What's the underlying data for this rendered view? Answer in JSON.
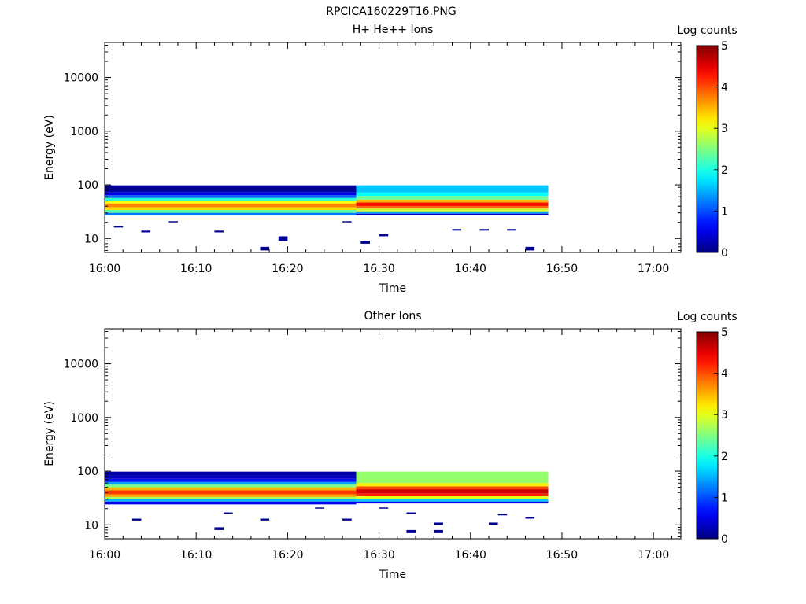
{
  "figure": {
    "title": "RPCICA160229T16.PNG"
  },
  "colorbar_ticks": [
    "0",
    "1",
    "2",
    "3",
    "4",
    "5"
  ],
  "chart_data": [
    {
      "type": "heatmap",
      "title": "H+ He++ Ions",
      "xlabel": "Time",
      "ylabel": "Energy (eV)",
      "colorbar_label": "Log counts",
      "x_ticks": [
        "16:00",
        "16:10",
        "16:20",
        "16:30",
        "16:40",
        "16:50",
        "17:00"
      ],
      "xlim": [
        "16:00",
        "17:03"
      ],
      "y_scale": "log",
      "y_ticks": [
        "10",
        "100",
        "1000",
        "10000"
      ],
      "ylim": [
        5.5,
        45000
      ],
      "colorbar_range": [
        0,
        5
      ],
      "data_end_time": "16:48.5",
      "bins": [
        {
          "t0": "16:00",
          "t1": "16:27.5",
          "e0": 38,
          "e1": 45,
          "log_counts": 3.7
        },
        {
          "t0": "16:00",
          "t1": "16:27.5",
          "e0": 34,
          "e1": 38,
          "log_counts": 3.3
        },
        {
          "t0": "16:00",
          "t1": "16:27.5",
          "e0": 45,
          "e1": 51,
          "log_counts": 3.1
        },
        {
          "t0": "16:00",
          "t1": "16:27.5",
          "e0": 30,
          "e1": 34,
          "log_counts": 2.3
        },
        {
          "t0": "16:00",
          "t1": "16:27.5",
          "e0": 51,
          "e1": 57,
          "log_counts": 2.1
        },
        {
          "t0": "16:00",
          "t1": "16:27.5",
          "e0": 27,
          "e1": 30,
          "log_counts": 1.2
        },
        {
          "t0": "16:00",
          "t1": "16:27.5",
          "e0": 57,
          "e1": 64,
          "log_counts": 1.1
        },
        {
          "t0": "16:00",
          "t1": "16:27.5",
          "e0": 64,
          "e1": 72,
          "log_counts": 0.5
        },
        {
          "t0": "16:00",
          "t1": "16:27.5",
          "e0": 72,
          "e1": 80,
          "log_counts": 0.2
        },
        {
          "t0": "16:00",
          "t1": "16:27.5",
          "e0": 80,
          "e1": 98,
          "log_counts": 0.1
        },
        {
          "t0": "16:27.5",
          "t1": "16:48.5",
          "e0": 40,
          "e1": 47,
          "log_counts": 4.3
        },
        {
          "t0": "16:27.5",
          "t1": "16:48.5",
          "e0": 36,
          "e1": 40,
          "log_counts": 3.9
        },
        {
          "t0": "16:27.5",
          "t1": "16:48.5",
          "e0": 47,
          "e1": 53,
          "log_counts": 3.5
        },
        {
          "t0": "16:27.5",
          "t1": "16:48.5",
          "e0": 32,
          "e1": 36,
          "log_counts": 2.9
        },
        {
          "t0": "16:27.5",
          "t1": "16:48.5",
          "e0": 53,
          "e1": 62,
          "log_counts": 2.4
        },
        {
          "t0": "16:27.5",
          "t1": "16:48.5",
          "e0": 29,
          "e1": 32,
          "log_counts": 1.4
        },
        {
          "t0": "16:27.5",
          "t1": "16:48.5",
          "e0": 62,
          "e1": 72,
          "log_counts": 1.9
        },
        {
          "t0": "16:27.5",
          "t1": "16:48.5",
          "e0": 72,
          "e1": 98,
          "log_counts": 1.6
        },
        {
          "t0": "16:27.5",
          "t1": "16:48.5",
          "e0": 27,
          "e1": 29,
          "log_counts": 0.3
        },
        {
          "t0": "16:01",
          "t1": "16:02",
          "e0": 16,
          "e1": 17,
          "log_counts": 0.1
        },
        {
          "t0": "16:04",
          "t1": "16:05",
          "e0": 13,
          "e1": 14,
          "log_counts": 0.1
        },
        {
          "t0": "16:07",
          "t1": "16:08",
          "e0": 20,
          "e1": 21,
          "log_counts": 0.1
        },
        {
          "t0": "16:12",
          "t1": "16:13",
          "e0": 13,
          "e1": 14,
          "log_counts": 0.1
        },
        {
          "t0": "16:17",
          "t1": "16:18",
          "e0": 6,
          "e1": 7,
          "log_counts": 0.1
        },
        {
          "t0": "16:19",
          "t1": "16:20",
          "e0": 9,
          "e1": 11,
          "log_counts": 0.1
        },
        {
          "t0": "16:26",
          "t1": "16:27",
          "e0": 20,
          "e1": 21,
          "log_counts": 0.1
        },
        {
          "t0": "16:28",
          "t1": "16:29",
          "e0": 8,
          "e1": 9,
          "log_counts": 0.1
        },
        {
          "t0": "16:30",
          "t1": "16:31",
          "e0": 11,
          "e1": 12,
          "log_counts": 0.1
        },
        {
          "t0": "16:38",
          "t1": "16:39",
          "e0": 14,
          "e1": 15,
          "log_counts": 0.1
        },
        {
          "t0": "16:41",
          "t1": "16:42",
          "e0": 14,
          "e1": 15,
          "log_counts": 0.1
        },
        {
          "t0": "16:44",
          "t1": "16:45",
          "e0": 14,
          "e1": 15,
          "log_counts": 0.1
        },
        {
          "t0": "16:46",
          "t1": "16:47",
          "e0": 6,
          "e1": 7,
          "log_counts": 0.1
        }
      ]
    },
    {
      "type": "heatmap",
      "title": "Other Ions",
      "xlabel": "Time",
      "ylabel": "Energy (eV)",
      "colorbar_label": "Log counts",
      "x_ticks": [
        "16:00",
        "16:10",
        "16:20",
        "16:30",
        "16:40",
        "16:50",
        "17:00"
      ],
      "xlim": [
        "16:00",
        "17:03"
      ],
      "y_scale": "log",
      "y_ticks": [
        "10",
        "100",
        "1000",
        "10000"
      ],
      "ylim": [
        5.5,
        45000
      ],
      "colorbar_range": [
        0,
        5
      ],
      "data_end_time": "16:48.5",
      "bins": [
        {
          "t0": "16:00",
          "t1": "16:27.5",
          "e0": 37,
          "e1": 44,
          "log_counts": 4.1
        },
        {
          "t0": "16:00",
          "t1": "16:27.5",
          "e0": 33,
          "e1": 37,
          "log_counts": 3.6
        },
        {
          "t0": "16:00",
          "t1": "16:27.5",
          "e0": 44,
          "e1": 50,
          "log_counts": 3.5
        },
        {
          "t0": "16:00",
          "t1": "16:27.5",
          "e0": 30,
          "e1": 33,
          "log_counts": 2.7
        },
        {
          "t0": "16:00",
          "t1": "16:27.5",
          "e0": 50,
          "e1": 56,
          "log_counts": 2.5
        },
        {
          "t0": "16:00",
          "t1": "16:27.5",
          "e0": 27,
          "e1": 30,
          "log_counts": 1.5
        },
        {
          "t0": "16:00",
          "t1": "16:27.5",
          "e0": 56,
          "e1": 63,
          "log_counts": 1.4
        },
        {
          "t0": "16:00",
          "t1": "16:27.5",
          "e0": 24,
          "e1": 27,
          "log_counts": 0.5
        },
        {
          "t0": "16:00",
          "t1": "16:27.5",
          "e0": 63,
          "e1": 72,
          "log_counts": 0.7
        },
        {
          "t0": "16:00",
          "t1": "16:27.5",
          "e0": 72,
          "e1": 82,
          "log_counts": 0.3
        },
        {
          "t0": "16:00",
          "t1": "16:27.5",
          "e0": 82,
          "e1": 98,
          "log_counts": 0.2
        },
        {
          "t0": "16:27.5",
          "t1": "16:48.5",
          "e0": 38,
          "e1": 46,
          "log_counts": 4.6
        },
        {
          "t0": "16:27.5",
          "t1": "16:48.5",
          "e0": 34,
          "e1": 38,
          "log_counts": 4.2
        },
        {
          "t0": "16:27.5",
          "t1": "16:48.5",
          "e0": 46,
          "e1": 52,
          "log_counts": 4.0
        },
        {
          "t0": "16:27.5",
          "t1": "16:48.5",
          "e0": 30,
          "e1": 34,
          "log_counts": 3.0
        },
        {
          "t0": "16:27.5",
          "t1": "16:48.5",
          "e0": 52,
          "e1": 60,
          "log_counts": 3.2
        },
        {
          "t0": "16:27.5",
          "t1": "16:48.5",
          "e0": 60,
          "e1": 98,
          "log_counts": 2.6
        },
        {
          "t0": "16:27.5",
          "t1": "16:48.5",
          "e0": 27,
          "e1": 30,
          "log_counts": 1.6
        },
        {
          "t0": "16:27.5",
          "t1": "16:48.5",
          "e0": 25,
          "e1": 27,
          "log_counts": 0.5
        },
        {
          "t0": "16:03",
          "t1": "16:04",
          "e0": 12,
          "e1": 13,
          "log_counts": 0.1
        },
        {
          "t0": "16:12",
          "t1": "16:13",
          "e0": 8,
          "e1": 9,
          "log_counts": 0.1
        },
        {
          "t0": "16:13",
          "t1": "16:14",
          "e0": 16,
          "e1": 17,
          "log_counts": 0.1
        },
        {
          "t0": "16:17",
          "t1": "16:18",
          "e0": 12,
          "e1": 13,
          "log_counts": 0.1
        },
        {
          "t0": "16:23",
          "t1": "16:24",
          "e0": 20,
          "e1": 21,
          "log_counts": 0.1
        },
        {
          "t0": "16:26",
          "t1": "16:27",
          "e0": 12,
          "e1": 13,
          "log_counts": 0.1
        },
        {
          "t0": "16:30",
          "t1": "16:31",
          "e0": 20,
          "e1": 21,
          "log_counts": 0.1
        },
        {
          "t0": "16:33",
          "t1": "16:34",
          "e0": 7,
          "e1": 8,
          "log_counts": 0.1
        },
        {
          "t0": "16:33",
          "t1": "16:34",
          "e0": 16,
          "e1": 17,
          "log_counts": 0.1
        },
        {
          "t0": "16:36",
          "t1": "16:37",
          "e0": 7,
          "e1": 8,
          "log_counts": 0.1
        },
        {
          "t0": "16:36",
          "t1": "16:37",
          "e0": 10,
          "e1": 11,
          "log_counts": 0.1
        },
        {
          "t0": "16:42",
          "t1": "16:43",
          "e0": 10,
          "e1": 11,
          "log_counts": 0.1
        },
        {
          "t0": "16:43",
          "t1": "16:44",
          "e0": 15,
          "e1": 16,
          "log_counts": 0.1
        },
        {
          "t0": "16:46",
          "t1": "16:47",
          "e0": 13,
          "e1": 14,
          "log_counts": 0.1
        }
      ]
    }
  ]
}
